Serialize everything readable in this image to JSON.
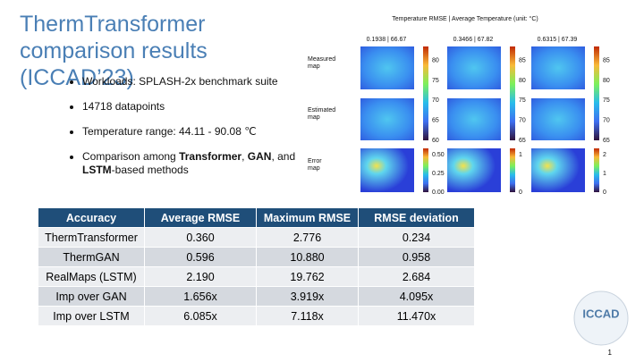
{
  "title": "ThermTransformer comparison results (ICCAD’23)",
  "bullets": [
    [
      {
        "text": "Workloads: SPLASH-2x benchmark suite"
      }
    ],
    [
      {
        "text": "14718 datapoints"
      }
    ],
    [
      {
        "text": "Temperature range: 44.11 - 90.08 ℃"
      }
    ],
    [
      {
        "text": "Comparison among "
      },
      {
        "text": "Transformer",
        "bold": true
      },
      {
        "text": ", "
      },
      {
        "text": "GAN",
        "bold": true
      },
      {
        "text": ", and "
      },
      {
        "text": "LSTM",
        "bold": true
      },
      {
        "text": "-based methods"
      }
    ]
  ],
  "figure": {
    "caption": "Temperature RMSE | Average Temperature (unit: °C)",
    "rows": [
      "Measured map",
      "Estimated map",
      "Error map"
    ],
    "columns": [
      {
        "label": "0.1938 | 66.67",
        "map_ticks": [
          "80",
          "75",
          "70",
          "65",
          "60"
        ],
        "error_ticks": [
          "0.50",
          "0.25",
          "0.00"
        ]
      },
      {
        "label": "0.3466 | 67.82",
        "map_ticks": [
          "85",
          "80",
          "75",
          "70",
          "65"
        ],
        "error_ticks": [
          "1",
          "0"
        ]
      },
      {
        "label": "0.6315 | 67.39",
        "map_ticks": [
          "85",
          "80",
          "75",
          "70",
          "65"
        ],
        "error_ticks": [
          "2",
          "1",
          "0"
        ]
      }
    ]
  },
  "table": {
    "header": [
      "Accuracy",
      "Average RMSE",
      "Maximum RMSE",
      "RMSE deviation"
    ],
    "rows": [
      [
        "ThermTransformer",
        "0.360",
        "2.776",
        "0.234"
      ],
      [
        "ThermGAN",
        "0.596",
        "10.880",
        "0.958"
      ],
      [
        "RealMaps (LSTM)",
        "2.190",
        "19.762",
        "2.684"
      ],
      [
        "Imp over GAN",
        "1.656x",
        "3.919x",
        "4.095x"
      ],
      [
        "Imp over LSTM",
        "6.085x",
        "7.118x",
        "11.470x"
      ]
    ]
  },
  "logo": "ICCAD",
  "page_number": "1"
}
